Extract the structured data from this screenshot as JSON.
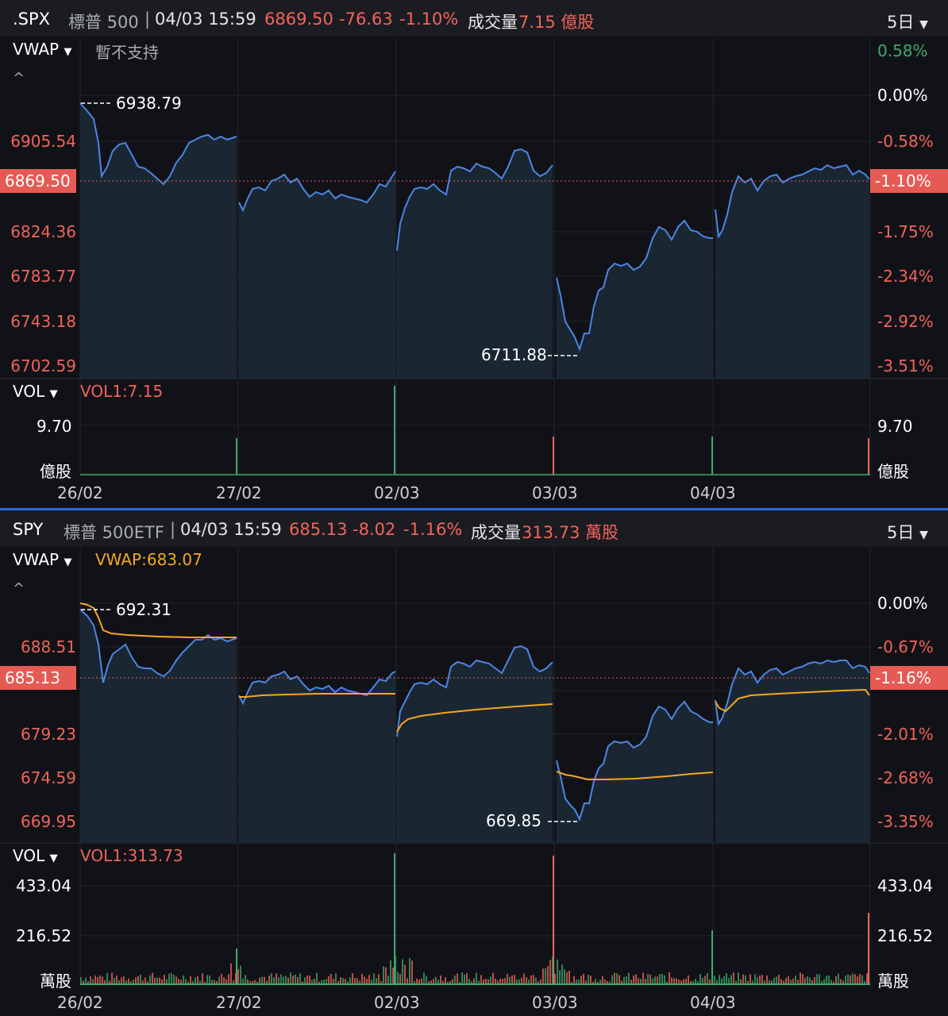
{
  "colors": {
    "up": "#3ea86b",
    "down": "#f0645a",
    "price_line": "#4b86e4",
    "vwap_line": "#f5a623",
    "bg": "#111217"
  },
  "top_panel": {
    "header": {
      "symbol": ".SPX",
      "name": "標普 500",
      "datetime": "04/03 15:59",
      "price": "6869.50",
      "change": "-76.63",
      "change_pct": "-1.10%",
      "volume_label": "成交量",
      "volume_value": "7.15 億股",
      "period": "5日"
    },
    "indicator": {
      "name": "VWAP",
      "note": "暫不支持"
    },
    "left_axis": [
      "6905.54",
      "6869.50",
      "6824.36",
      "6783.77",
      "6743.18",
      "6702.59"
    ],
    "right_axis": [
      "0.58%",
      "0.00%",
      "-0.58%",
      "-1.10%",
      "-1.75%",
      "-2.34%",
      "-2.92%",
      "-3.51%"
    ],
    "high_marker": "6938.79",
    "low_marker": "6711.88",
    "current_tag": "6869.50",
    "current_pct_tag": "-1.10%",
    "vol": {
      "name": "VOL",
      "value_label": "VOL1:7.15",
      "axis_value": "9.70",
      "unit": "億股"
    },
    "dates": [
      "26/02",
      "27/02",
      "02/03",
      "03/03",
      "04/03"
    ]
  },
  "bottom_panel": {
    "header": {
      "symbol": "SPY",
      "name": "標普 500ETF",
      "datetime": "04/03 15:59",
      "price": "685.13",
      "change": "-8.02",
      "change_pct": "-1.16%",
      "volume_label": "成交量",
      "volume_value": "313.73 萬股",
      "period": "5日"
    },
    "indicator": {
      "name": "VWAP",
      "note": "VWAP:683.07"
    },
    "left_axis": [
      "688.51",
      "685.13",
      "679.23",
      "674.59",
      "669.95"
    ],
    "right_axis": [
      "0.00%",
      "-0.67%",
      "-1.16%",
      "-2.01%",
      "-2.68%",
      "-3.35%"
    ],
    "high_marker": "692.31",
    "low_marker": "669.85",
    "current_tag": "685.13",
    "current_pct_tag": "-1.16%",
    "vol": {
      "name": "VOL",
      "value_label": "VOL1:313.73",
      "axis_values": [
        "433.04",
        "216.52"
      ],
      "unit": "萬股"
    },
    "dates": [
      "26/02",
      "27/02",
      "02/03",
      "03/03",
      "04/03"
    ]
  }
}
